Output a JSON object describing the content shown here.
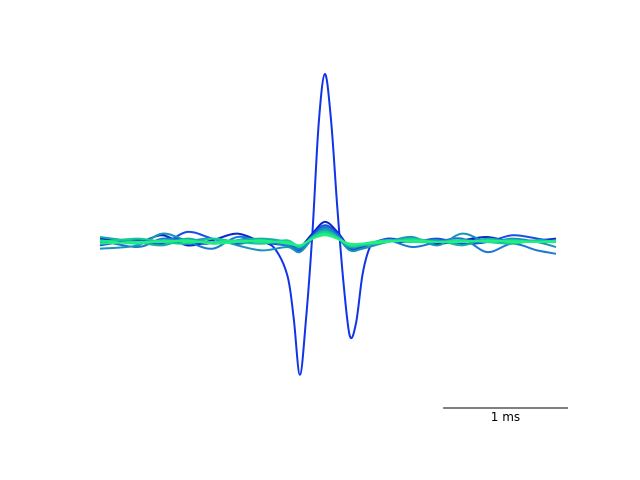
{
  "chart_data": {
    "type": "line",
    "title": "",
    "xlabel": "",
    "ylabel": "",
    "axes_visible": false,
    "grid": false,
    "legend": "none",
    "x_unit": "ms",
    "xlim": [
      -1.8,
      1.85
    ],
    "ylim": [
      -1.0,
      1.0
    ],
    "scalebar": {
      "length": 1,
      "label": "1 ms"
    },
    "series": [
      {
        "color": "#1034e6",
        "x": [
          -1.8,
          -1.6,
          -1.4,
          -1.2,
          -1.0,
          -0.8,
          -0.6,
          -0.5,
          -0.4,
          -0.3,
          -0.25,
          -0.2,
          -0.15,
          -0.1,
          -0.05,
          0.0,
          0.05,
          0.1,
          0.15,
          0.2,
          0.25,
          0.3,
          0.35,
          0.4,
          0.5,
          0.6,
          0.8,
          1.0,
          1.2,
          1.4,
          1.6,
          1.8,
          1.85
        ],
        "y": [
          0.0,
          0.01,
          0.0,
          0.02,
          -0.01,
          0.0,
          0.02,
          0.0,
          -0.04,
          -0.2,
          -0.45,
          -0.79,
          -0.45,
          0.05,
          0.7,
          1.0,
          0.72,
          0.2,
          -0.25,
          -0.56,
          -0.48,
          -0.2,
          -0.05,
          0.0,
          0.01,
          0.0,
          0.01,
          0.0,
          0.01,
          0.0,
          0.01,
          0.0,
          0.0
        ]
      },
      {
        "color": "#0a24cf",
        "x": [
          -1.8,
          -1.5,
          -1.3,
          -1.1,
          -0.9,
          -0.7,
          -0.5,
          -0.3,
          -0.2,
          -0.1,
          0.0,
          0.1,
          0.2,
          0.3,
          0.5,
          0.7,
          0.9,
          1.1,
          1.3,
          1.5,
          1.7,
          1.85
        ],
        "y": [
          0.02,
          0.0,
          0.04,
          -0.02,
          0.01,
          0.05,
          0.0,
          -0.02,
          -0.03,
          0.05,
          0.12,
          0.06,
          -0.03,
          -0.02,
          0.0,
          0.02,
          -0.01,
          0.01,
          0.03,
          0.0,
          0.01,
          0.02
        ]
      },
      {
        "color": "#1a4de8",
        "x": [
          -1.8,
          -1.5,
          -1.3,
          -1.1,
          -0.9,
          -0.7,
          -0.5,
          -0.3,
          -0.2,
          -0.1,
          0.0,
          0.1,
          0.2,
          0.3,
          0.5,
          0.7,
          0.9,
          1.1,
          1.3,
          1.5,
          1.7,
          1.85
        ],
        "y": [
          -0.02,
          0.01,
          -0.01,
          0.06,
          0.02,
          -0.01,
          0.01,
          -0.01,
          -0.05,
          0.04,
          0.1,
          0.05,
          -0.04,
          -0.03,
          0.02,
          0.0,
          0.02,
          -0.01,
          0.0,
          0.04,
          0.02,
          0.0
        ]
      },
      {
        "color": "#1b78d4",
        "x": [
          -1.8,
          -1.5,
          -1.3,
          -1.1,
          -0.9,
          -0.7,
          -0.5,
          -0.3,
          -0.2,
          -0.1,
          0.0,
          0.1,
          0.2,
          0.3,
          0.5,
          0.7,
          0.9,
          1.1,
          1.3,
          1.5,
          1.7,
          1.85
        ],
        "y": [
          0.01,
          -0.03,
          0.02,
          0.0,
          -0.04,
          0.03,
          0.0,
          -0.02,
          -0.04,
          0.03,
          0.09,
          0.04,
          -0.03,
          -0.02,
          0.01,
          -0.03,
          0.0,
          0.02,
          -0.06,
          -0.01,
          -0.05,
          -0.07
        ]
      },
      {
        "color": "#1993b8",
        "x": [
          -1.8,
          -1.5,
          -1.3,
          -1.1,
          -0.9,
          -0.7,
          -0.5,
          -0.3,
          -0.2,
          -0.1,
          0.0,
          0.1,
          0.2,
          0.3,
          0.5,
          0.7,
          0.9,
          1.1,
          1.3,
          1.5,
          1.7,
          1.85
        ],
        "y": [
          -0.04,
          -0.02,
          0.05,
          0.01,
          0.02,
          -0.02,
          -0.05,
          -0.03,
          -0.06,
          0.02,
          0.08,
          0.03,
          -0.05,
          -0.04,
          0.0,
          0.03,
          -0.02,
          0.05,
          0.0,
          0.02,
          0.0,
          -0.03
        ]
      },
      {
        "color": "#15b0a0",
        "x": [
          -1.8,
          -1.5,
          -1.3,
          -1.1,
          -0.9,
          -0.7,
          -0.5,
          -0.3,
          -0.2,
          -0.1,
          0.0,
          0.1,
          0.2,
          0.3,
          0.5,
          0.7,
          0.9,
          1.1,
          1.3,
          1.5,
          1.7,
          1.85
        ],
        "y": [
          0.03,
          0.0,
          -0.02,
          0.02,
          -0.01,
          0.01,
          0.02,
          0.0,
          -0.03,
          0.03,
          0.07,
          0.03,
          -0.03,
          -0.02,
          0.01,
          0.0,
          0.01,
          -0.02,
          0.02,
          0.0,
          0.01,
          0.0
        ]
      },
      {
        "color": "#17cc94",
        "x": [
          -1.8,
          -1.5,
          -1.3,
          -1.1,
          -0.9,
          -0.7,
          -0.5,
          -0.3,
          -0.2,
          -0.1,
          0.0,
          0.1,
          0.2,
          0.3,
          0.5,
          0.7,
          0.9,
          1.1,
          1.3,
          1.5,
          1.7,
          1.85
        ],
        "y": [
          0.0,
          0.02,
          0.0,
          -0.01,
          0.02,
          0.0,
          -0.01,
          0.01,
          -0.03,
          0.03,
          0.06,
          0.03,
          -0.02,
          -0.02,
          0.0,
          0.02,
          0.0,
          0.01,
          0.0,
          -0.01,
          0.01,
          0.0
        ]
      },
      {
        "color": "#20e68a",
        "x": [
          -1.8,
          -1.5,
          -1.3,
          -1.1,
          -0.9,
          -0.7,
          -0.5,
          -0.3,
          -0.2,
          -0.1,
          0.0,
          0.1,
          0.2,
          0.3,
          0.5,
          0.7,
          0.9,
          1.1,
          1.3,
          1.5,
          1.7,
          1.85
        ],
        "y": [
          0.01,
          -0.01,
          0.01,
          0.0,
          0.0,
          0.01,
          0.0,
          0.0,
          -0.02,
          0.02,
          0.05,
          0.02,
          -0.02,
          -0.01,
          0.01,
          0.0,
          0.0,
          0.01,
          0.0,
          0.01,
          0.0,
          0.01
        ]
      },
      {
        "color": "#22f07e",
        "x": [
          -1.8,
          -1.5,
          -1.3,
          -1.1,
          -0.9,
          -0.7,
          -0.5,
          -0.3,
          -0.2,
          -0.1,
          0.0,
          0.1,
          0.2,
          0.3,
          0.5,
          0.7,
          0.9,
          1.1,
          1.3,
          1.5,
          1.7,
          1.85
        ],
        "y": [
          -0.01,
          0.0,
          0.0,
          0.01,
          -0.01,
          0.0,
          0.01,
          -0.01,
          -0.02,
          0.02,
          0.04,
          0.02,
          -0.01,
          -0.01,
          0.0,
          0.01,
          0.0,
          0.0,
          0.01,
          0.0,
          0.0,
          0.0
        ]
      }
    ]
  }
}
